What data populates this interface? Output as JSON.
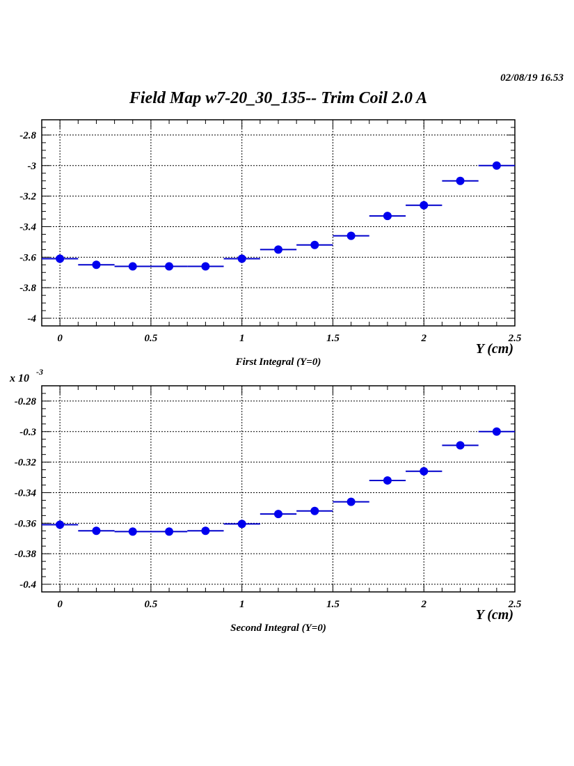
{
  "header": {
    "timestamp": "02/08/19   16.53",
    "title": "Field Map w7-20_30_135-- Trim Coil 2.0 A"
  },
  "colors": {
    "marker": "#0000ee",
    "error_bar": "#0000cc",
    "frame": "#000000",
    "grid": "#000000"
  },
  "chart_data": [
    {
      "type": "scatter",
      "title": "First Integral (Y=0)",
      "xlabel": "Y (cm)",
      "ylabel": "",
      "exponent_label": "",
      "xlim": [
        -0.1,
        2.5
      ],
      "ylim": [
        -4.05,
        -2.7
      ],
      "x_ticks": [
        0,
        0.5,
        1,
        1.5,
        2,
        2.5
      ],
      "x_tick_labels": [
        "0",
        "0.5",
        "1",
        "1.5",
        "2",
        "2.5"
      ],
      "y_ticks": [
        -2.8,
        -3,
        -3.2,
        -3.4,
        -3.6,
        -3.8,
        -4
      ],
      "y_tick_labels": [
        "-2.8",
        "-3",
        "-3.2",
        "-3.4",
        "-3.6",
        "-3.8",
        "-4"
      ],
      "grid": true,
      "x_half_width": 0.1,
      "series": [
        {
          "x": [
            0,
            0.2,
            0.4,
            0.6,
            0.8,
            1.0,
            1.2,
            1.4,
            1.6,
            1.8,
            2.0,
            2.2,
            2.4
          ],
          "values": [
            -3.61,
            -3.65,
            -3.66,
            -3.66,
            -3.66,
            -3.61,
            -3.55,
            -3.52,
            -3.46,
            -3.33,
            -3.26,
            -3.1,
            -3.0
          ]
        }
      ]
    },
    {
      "type": "scatter",
      "title": "Second Integral (Y=0)",
      "xlabel": "Y (cm)",
      "ylabel": "",
      "exponent_label": "x 10",
      "exponent_power": "-3",
      "xlim": [
        -0.1,
        2.5
      ],
      "ylim": [
        -0.405,
        -0.27
      ],
      "x_ticks": [
        0,
        0.5,
        1,
        1.5,
        2,
        2.5
      ],
      "x_tick_labels": [
        "0",
        "0.5",
        "1",
        "1.5",
        "2",
        "2.5"
      ],
      "y_ticks": [
        -0.28,
        -0.3,
        -0.32,
        -0.34,
        -0.36,
        -0.38,
        -0.4
      ],
      "y_tick_labels": [
        "-0.28",
        "-0.3",
        "-0.32",
        "-0.34",
        "-0.36",
        "-0.38",
        "-0.4"
      ],
      "grid": true,
      "x_half_width": 0.1,
      "series": [
        {
          "x": [
            0,
            0.2,
            0.4,
            0.6,
            0.8,
            1.0,
            1.2,
            1.4,
            1.6,
            1.8,
            2.0,
            2.2,
            2.4
          ],
          "values": [
            -0.361,
            -0.365,
            -0.3655,
            -0.3655,
            -0.365,
            -0.3605,
            -0.354,
            -0.352,
            -0.346,
            -0.332,
            -0.326,
            -0.309,
            -0.3
          ]
        }
      ]
    }
  ]
}
